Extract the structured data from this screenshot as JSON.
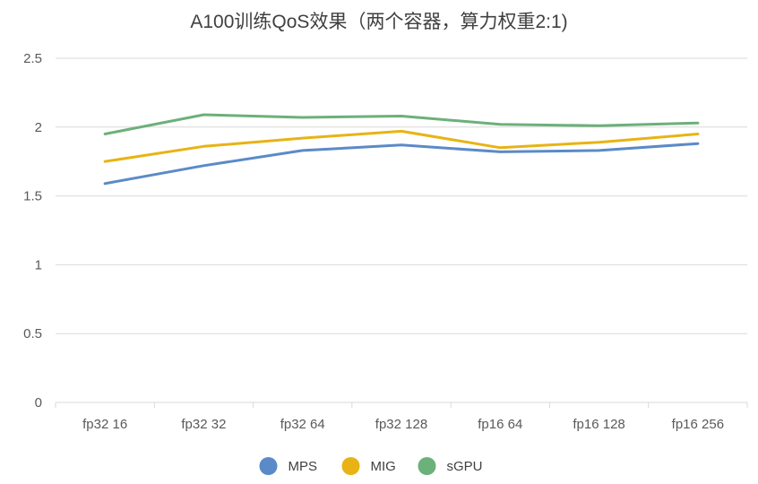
{
  "chart_data": {
    "type": "line",
    "title": "A100训练QoS效果（两个容器，算力权重2:1)",
    "xlabel": "",
    "ylabel": "",
    "categories": [
      "fp32 16",
      "fp32 32",
      "fp32 64",
      "fp32 128",
      "fp16 64",
      "fp16 128",
      "fp16 256"
    ],
    "ylim": [
      0,
      2.5
    ],
    "yticks": [
      "0",
      "0.5",
      "1",
      "1.5",
      "2",
      "2.5"
    ],
    "grid": true,
    "legend": "bottom",
    "series": [
      {
        "name": "MPS",
        "color": "#5b8ac8",
        "values": [
          1.59,
          1.72,
          1.83,
          1.87,
          1.82,
          1.83,
          1.88
        ]
      },
      {
        "name": "MIG",
        "color": "#e8b314",
        "values": [
          1.75,
          1.86,
          1.92,
          1.97,
          1.85,
          1.89,
          1.95
        ]
      },
      {
        "name": "sGPU",
        "color": "#6cb07a",
        "values": [
          1.95,
          2.09,
          2.07,
          2.08,
          2.02,
          2.01,
          2.03
        ]
      }
    ]
  }
}
